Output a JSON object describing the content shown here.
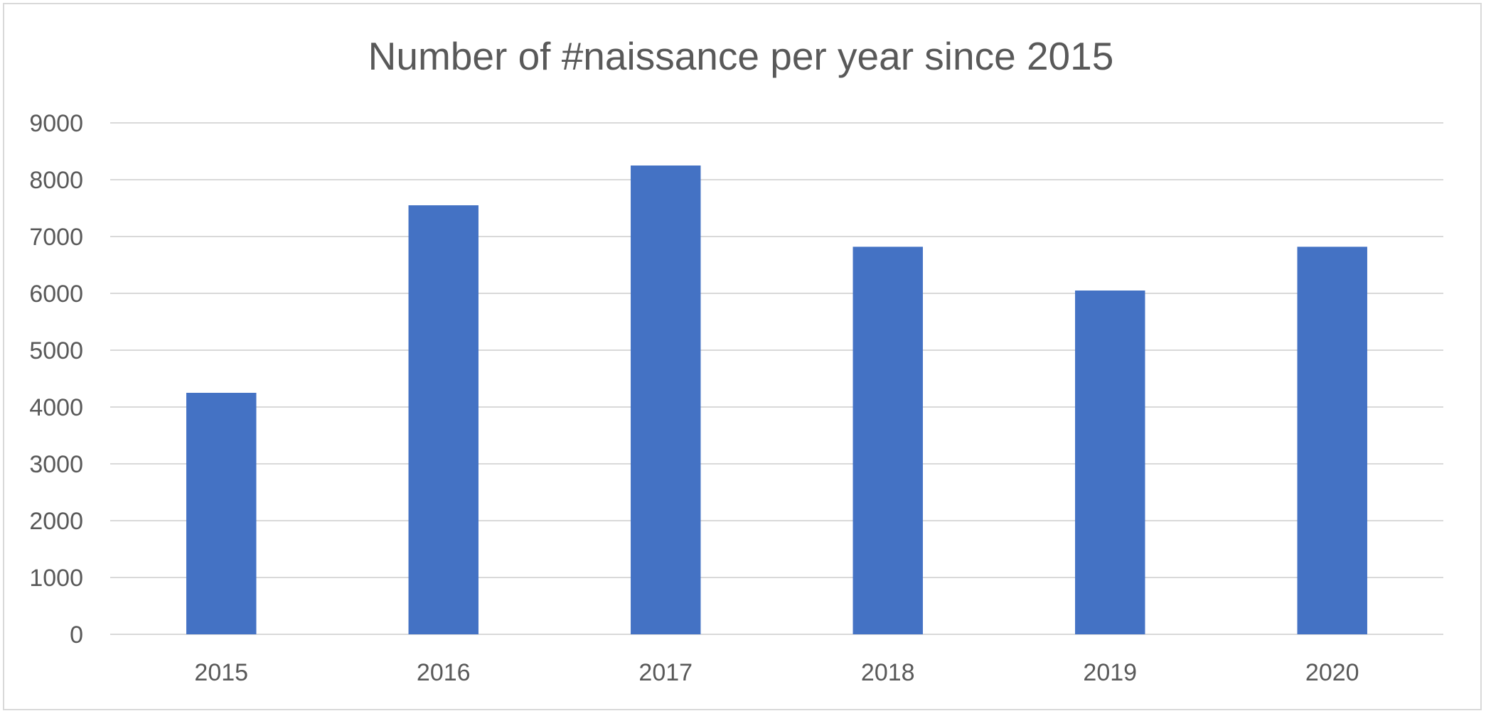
{
  "chart_data": {
    "type": "bar",
    "title": "Number of #naissance per year since 2015",
    "xlabel": "",
    "ylabel": "",
    "categories": [
      "2015",
      "2016",
      "2017",
      "2018",
      "2019",
      "2020"
    ],
    "values": [
      4250,
      7550,
      8250,
      6820,
      6050,
      6820
    ],
    "ylim": [
      0,
      9000
    ],
    "yticks": [
      0,
      1000,
      2000,
      3000,
      4000,
      5000,
      6000,
      7000,
      8000,
      9000
    ],
    "grid": true,
    "legend": "none",
    "colors": {
      "bar": "#4472C4",
      "grid": "#D9D9D9",
      "text": "#595959"
    }
  }
}
